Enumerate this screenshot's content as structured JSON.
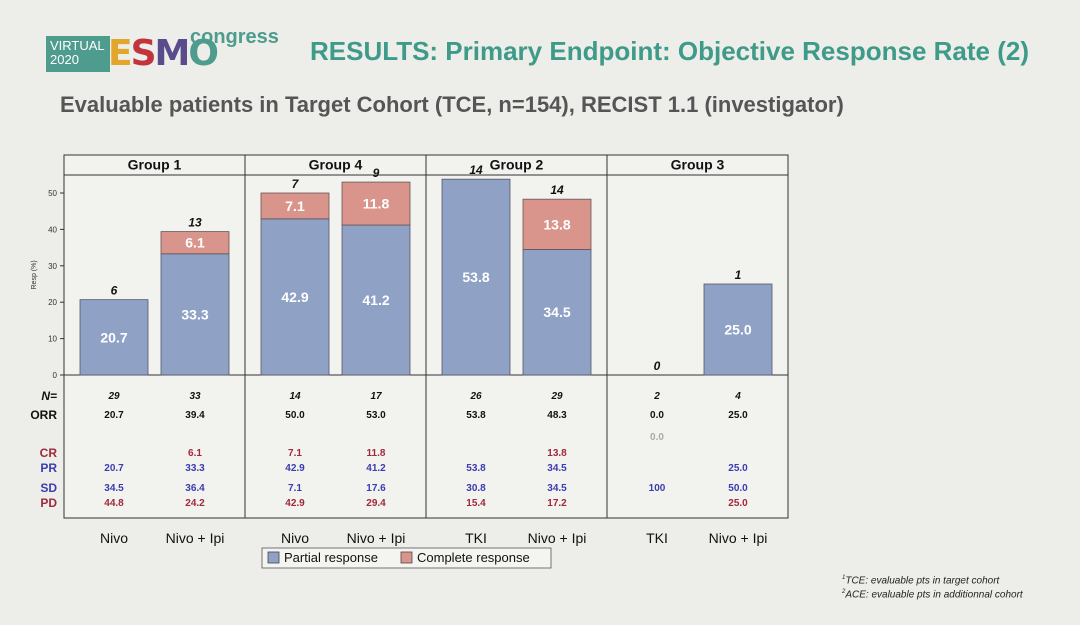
{
  "header": {
    "logo_virtual": "VIRTUAL",
    "logo_year": "2020",
    "logo_esmo": "ESMO",
    "logo_congress": "congress",
    "title": "RESULTS: Primary Endpoint: Objective Response Rate (2)",
    "subtitle": "Evaluable patients in Target Cohort (TCE, n=154), RECIST 1.1 (investigator)"
  },
  "chart_data": {
    "type": "bar",
    "stacked": true,
    "ylabel": "Resp (%)",
    "ylim": [
      0,
      55
    ],
    "yticks": [
      0,
      10,
      20,
      30,
      40,
      50
    ],
    "groups": [
      {
        "name": "Group 1",
        "categories": [
          "Nivo",
          "Nivo + Ipi"
        ]
      },
      {
        "name": "Group 4",
        "categories": [
          "Nivo",
          "Nivo + Ipi"
        ]
      },
      {
        "name": "Group 2",
        "categories": [
          "TKI",
          "Nivo + Ipi"
        ]
      },
      {
        "name": "Group 3",
        "categories": [
          "TKI",
          "Nivo + Ipi"
        ]
      }
    ],
    "categories": [
      "Nivo",
      "Nivo + Ipi",
      "Nivo",
      "Nivo + Ipi",
      "TKI",
      "Nivo + Ipi",
      "TKI",
      "Nivo + Ipi"
    ],
    "series": [
      {
        "name": "Partial response",
        "color": "#8fa2c6",
        "values": [
          20.7,
          33.3,
          42.9,
          41.2,
          53.8,
          34.5,
          0,
          25.0
        ],
        "labels": [
          "20.7",
          "33.3",
          "42.9",
          "41.2",
          "53.8",
          "34.5",
          "",
          "25.0"
        ]
      },
      {
        "name": "Complete response",
        "color": "#d9958b",
        "values": [
          0,
          6.1,
          7.1,
          11.8,
          0,
          13.8,
          0,
          0
        ],
        "labels": [
          "",
          "6.1",
          "7.1",
          "11.8",
          "",
          "13.8",
          "",
          ""
        ]
      }
    ],
    "bar_top_counts": [
      "6",
      "13",
      "7",
      "9",
      "14",
      "14",
      "0",
      "1"
    ],
    "legend_position": "bottom",
    "table": {
      "rows": [
        {
          "label": "N=",
          "color": "#111111",
          "italic": true,
          "values": [
            "29",
            "33",
            "14",
            "17",
            "26",
            "29",
            "2",
            "4"
          ]
        },
        {
          "label": "ORR",
          "color": "#111111",
          "italic": false,
          "values": [
            "20.7",
            "39.4",
            "50.0",
            "53.0",
            "53.8",
            "48.3",
            "0.0",
            "25.0"
          ]
        },
        {
          "label": "",
          "color": "#aaaaaa",
          "italic": false,
          "values": [
            "",
            "",
            "",
            "",
            "",
            "",
            "0.0",
            ""
          ]
        },
        {
          "label": "CR",
          "color": "#a0283a",
          "italic": false,
          "values": [
            "",
            "6.1",
            "7.1",
            "11.8",
            "",
            "13.8",
            "",
            ""
          ]
        },
        {
          "label": "PR",
          "color": "#3b3bb0",
          "italic": false,
          "values": [
            "20.7",
            "33.3",
            "42.9",
            "41.2",
            "53.8",
            "34.5",
            "",
            "25.0"
          ]
        },
        {
          "label": "SD",
          "color": "#3b3bb0",
          "italic": false,
          "values": [
            "34.5",
            "36.4",
            "7.1",
            "17.6",
            "30.8",
            "34.5",
            "100",
            "50.0"
          ]
        },
        {
          "label": "PD",
          "color": "#a0283a",
          "italic": false,
          "values": [
            "44.8",
            "24.2",
            "42.9",
            "29.4",
            "15.4",
            "17.2",
            "",
            "25.0"
          ]
        }
      ]
    }
  },
  "footnotes": [
    {
      "sup": "1",
      "text": "TCE: evaluable pts in target cohort"
    },
    {
      "sup": "2",
      "text": "ACE: evaluable pts in additionnal cohort"
    }
  ]
}
